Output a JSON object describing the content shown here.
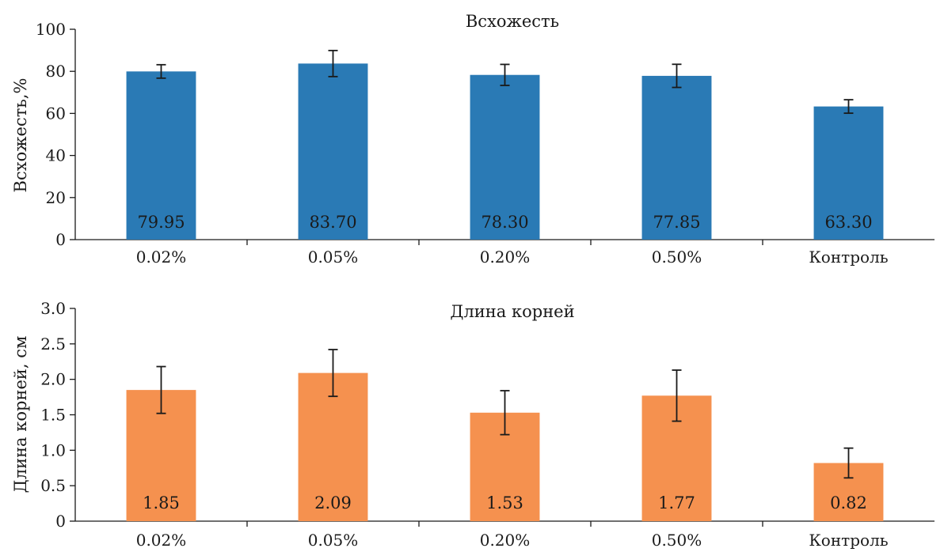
{
  "chart_data": [
    {
      "type": "bar",
      "title": "Всхожесть",
      "ylabel": "Всхожесть,%",
      "xlabel": "",
      "categories": [
        "0.02%",
        "0.05%",
        "0.20%",
        "0.50%",
        "Контроль"
      ],
      "values": [
        79.95,
        83.7,
        78.3,
        77.85,
        63.3
      ],
      "value_labels": [
        "79.95",
        "83.70",
        "78.30",
        "77.85",
        "63.30"
      ],
      "errors": [
        3.2,
        6.2,
        5.0,
        5.5,
        3.2
      ],
      "ylim": [
        0,
        100
      ],
      "yticks": [
        "0",
        "20",
        "40",
        "60",
        "80",
        "100"
      ],
      "ytick_values": [
        0,
        20,
        40,
        60,
        80,
        100
      ],
      "color": "#2a7ab5",
      "grid": false
    },
    {
      "type": "bar",
      "title": "Длина корней",
      "ylabel": "Длина корней, см",
      "xlabel": "",
      "categories": [
        "0.02%",
        "0.05%",
        "0.20%",
        "0.50%",
        "Контроль"
      ],
      "values": [
        1.85,
        2.09,
        1.53,
        1.77,
        0.82
      ],
      "value_labels": [
        "1.85",
        "2.09",
        "1.53",
        "1.77",
        "0.82"
      ],
      "errors": [
        0.33,
        0.33,
        0.31,
        0.36,
        0.21
      ],
      "ylim": [
        0,
        3.0
      ],
      "yticks": [
        "0",
        "0.5",
        "1.0",
        "1.5",
        "2.0",
        "2.5",
        "3.0"
      ],
      "ytick_values": [
        0,
        0.5,
        1.0,
        1.5,
        2.0,
        2.5,
        3.0
      ],
      "color": "#f5914f",
      "grid": false
    }
  ]
}
